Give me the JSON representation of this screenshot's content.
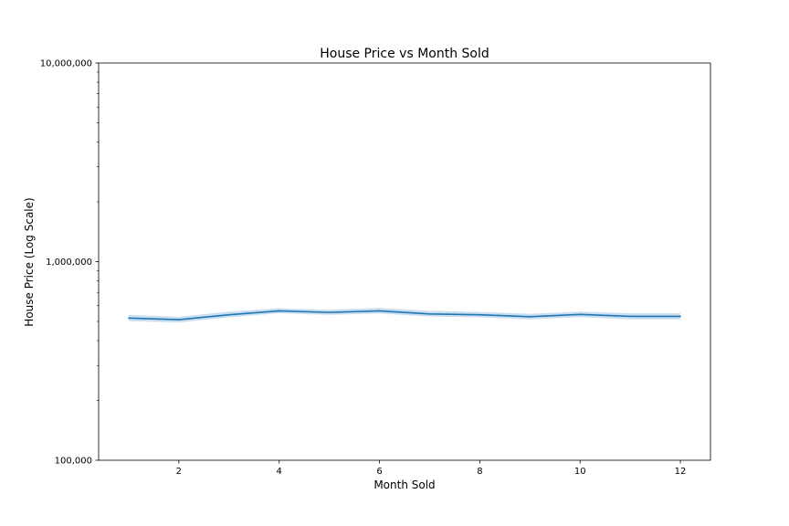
{
  "chart_data": {
    "type": "line",
    "title": "House Price vs Month Sold",
    "xlabel": "Month Sold",
    "ylabel": "House Price (Log Scale)",
    "yscale": "log",
    "xlim": [
      0.4,
      12.6
    ],
    "ylim": [
      100000,
      10000000
    ],
    "x_ticks": [
      2,
      4,
      6,
      8,
      10,
      12
    ],
    "x_tick_labels": [
      "2",
      "4",
      "6",
      "8",
      "10",
      "12"
    ],
    "y_ticks": [
      100000,
      1000000,
      10000000
    ],
    "y_tick_labels": [
      "100,000",
      "1,000,000",
      "10,000,000"
    ],
    "grid": false,
    "series": [
      {
        "color": "#1f77b4",
        "band_color": "#a6c8e6",
        "x": [
          1,
          2,
          3,
          4,
          5,
          6,
          7,
          8,
          9,
          10,
          11,
          12
        ],
        "values": [
          520000,
          510000,
          540000,
          565000,
          555000,
          565000,
          545000,
          540000,
          528000,
          542000,
          530000,
          530000
        ],
        "ci_upper": [
          540000,
          528000,
          560000,
          582000,
          573000,
          585000,
          565000,
          558000,
          546000,
          560000,
          550000,
          550000
        ],
        "ci_lower": [
          502000,
          494000,
          524000,
          550000,
          539000,
          548000,
          529000,
          524000,
          512000,
          526000,
          512000,
          512000
        ]
      }
    ]
  }
}
